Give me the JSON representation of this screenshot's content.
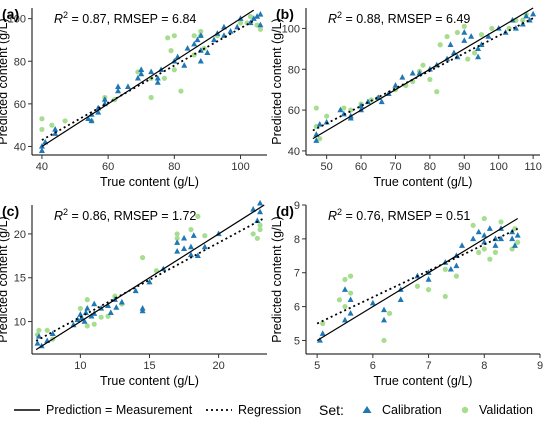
{
  "colors": {
    "calibration": "#1f78b4",
    "validation": "#a6dd8f",
    "identity": "#000000",
    "regression": "#000000"
  },
  "legend": {
    "line_label": "Prediction = Measurement",
    "regression_label": "Regression",
    "set_title": "Set:",
    "calibration_label": "Calibration",
    "validation_label": "Validation"
  },
  "chart_data": [
    {
      "type": "scatter",
      "label": "(a)",
      "stats": {
        "r2": "= 0.87, RMSEP = 6.84"
      },
      "xlabel": "True content (g/L)",
      "ylabel": "Predicted content (g/L)",
      "xlim": [
        37,
        108
      ],
      "ylim": [
        36,
        105
      ],
      "xticks": [
        40,
        60,
        80,
        100
      ],
      "yticks": [
        40,
        60,
        80,
        100
      ],
      "identity": [
        [
          40,
          40
        ],
        [
          104,
          104
        ]
      ],
      "regression": [
        [
          40,
          43
        ],
        [
          104,
          99
        ]
      ],
      "calibration": [
        [
          40,
          38
        ],
        [
          40,
          40
        ],
        [
          41,
          42
        ],
        [
          44,
          46
        ],
        [
          44,
          48
        ],
        [
          54,
          53
        ],
        [
          55,
          55
        ],
        [
          55,
          52
        ],
        [
          57,
          56
        ],
        [
          57,
          58
        ],
        [
          59,
          60
        ],
        [
          59,
          62
        ],
        [
          63,
          66
        ],
        [
          63,
          68
        ],
        [
          66,
          68
        ],
        [
          69,
          72
        ],
        [
          70,
          76
        ],
        [
          70,
          74
        ],
        [
          73,
          75
        ],
        [
          75,
          70
        ],
        [
          75,
          72
        ],
        [
          76,
          76
        ],
        [
          80,
          80
        ],
        [
          81,
          82
        ],
        [
          83,
          78
        ],
        [
          84,
          86
        ],
        [
          86,
          88
        ],
        [
          87,
          90
        ],
        [
          88,
          85
        ],
        [
          88,
          92
        ],
        [
          88,
          80
        ],
        [
          90,
          84
        ],
        [
          92,
          90
        ],
        [
          93,
          93
        ],
        [
          95,
          96
        ],
        [
          95,
          92
        ],
        [
          97,
          94
        ],
        [
          99,
          96
        ],
        [
          100,
          100
        ],
        [
          103,
          98
        ],
        [
          104,
          100
        ],
        [
          105,
          101
        ],
        [
          106,
          102
        ],
        [
          106,
          97
        ]
      ],
      "validation": [
        [
          40,
          48
        ],
        [
          40,
          53
        ],
        [
          43,
          50
        ],
        [
          47,
          52
        ],
        [
          55,
          52
        ],
        [
          59,
          63
        ],
        [
          62,
          62
        ],
        [
          69,
          75
        ],
        [
          73,
          63
        ],
        [
          73,
          72
        ],
        [
          77,
          72
        ],
        [
          78,
          91
        ],
        [
          79,
          85
        ],
        [
          80,
          76
        ],
        [
          80,
          92
        ],
        [
          82,
          66
        ],
        [
          86,
          92
        ],
        [
          86,
          83
        ],
        [
          88,
          92
        ],
        [
          88,
          94
        ],
        [
          89,
          86
        ],
        [
          93,
          92
        ],
        [
          100,
          98
        ],
        [
          102,
          98
        ],
        [
          103,
          101
        ],
        [
          105,
          97
        ],
        [
          106,
          95
        ]
      ]
    },
    {
      "type": "scatter",
      "label": "(b)",
      "stats": {
        "r2": "= 0.88, RMSEP = 6.49"
      },
      "xlabel": "True content (g/L)",
      "ylabel": "Predicted content (g/L)",
      "xlim": [
        44,
        112
      ],
      "ylim": [
        38,
        110
      ],
      "xticks": [
        50,
        60,
        70,
        80,
        90,
        100,
        110
      ],
      "yticks": [
        40,
        60,
        80,
        100
      ],
      "identity": [
        [
          46,
          46
        ],
        [
          110,
          110
        ]
      ],
      "regression": [
        [
          46,
          50
        ],
        [
          110,
          105
        ]
      ],
      "calibration": [
        [
          47,
          45
        ],
        [
          47,
          48
        ],
        [
          48,
          53
        ],
        [
          50,
          54
        ],
        [
          54,
          60
        ],
        [
          55,
          58
        ],
        [
          57,
          56
        ],
        [
          57,
          57
        ],
        [
          60,
          60
        ],
        [
          60,
          62
        ],
        [
          62,
          64
        ],
        [
          65,
          66
        ],
        [
          66,
          64
        ],
        [
          68,
          68
        ],
        [
          70,
          72
        ],
        [
          72,
          76
        ],
        [
          75,
          78
        ],
        [
          77,
          78
        ],
        [
          80,
          80
        ],
        [
          82,
          82
        ],
        [
          85,
          85
        ],
        [
          86,
          92
        ],
        [
          87,
          88
        ],
        [
          88,
          86
        ],
        [
          90,
          94
        ],
        [
          90,
          98
        ],
        [
          92,
          96
        ],
        [
          94,
          90
        ],
        [
          94,
          86
        ],
        [
          95,
          92
        ],
        [
          97,
          96
        ],
        [
          100,
          100
        ],
        [
          102,
          98
        ],
        [
          104,
          104
        ],
        [
          105,
          100
        ],
        [
          107,
          102
        ],
        [
          108,
          106
        ],
        [
          109,
          104
        ],
        [
          110,
          107
        ]
      ],
      "validation": [
        [
          47,
          52
        ],
        [
          47,
          61
        ],
        [
          48,
          46
        ],
        [
          50,
          57
        ],
        [
          55,
          61
        ],
        [
          57,
          60
        ],
        [
          60,
          63
        ],
        [
          63,
          65
        ],
        [
          65,
          66
        ],
        [
          70,
          70
        ],
        [
          73,
          72
        ],
        [
          75,
          74
        ],
        [
          77,
          79
        ],
        [
          78,
          82
        ],
        [
          80,
          75
        ],
        [
          82,
          69
        ],
        [
          83,
          92
        ],
        [
          85,
          96
        ],
        [
          88,
          98
        ],
        [
          90,
          101
        ],
        [
          91,
          85
        ],
        [
          93,
          88
        ],
        [
          95,
          97
        ],
        [
          98,
          100
        ],
        [
          103,
          100
        ],
        [
          105,
          104
        ],
        [
          107,
          104
        ],
        [
          108,
          107
        ]
      ]
    },
    {
      "type": "scatter",
      "label": "(c)",
      "stats": {
        "r2": "= 0.86, RMSEP = 1.72"
      },
      "xlabel": "True content (g/L)",
      "ylabel": "Predicted content (g/L)",
      "xlim": [
        6.5,
        23.5
      ],
      "ylim": [
        6.3,
        23.3
      ],
      "xticks": [
        10,
        15,
        20
      ],
      "yticks": [
        10,
        15,
        20
      ],
      "identity": [
        [
          6.8,
          6.8
        ],
        [
          23.3,
          23.3
        ]
      ],
      "regression": [
        [
          6.8,
          7.8
        ],
        [
          23.3,
          21.8
        ]
      ],
      "calibration": [
        [
          6.9,
          7.5
        ],
        [
          7.0,
          8.3
        ],
        [
          7.2,
          7.2
        ],
        [
          7.6,
          7.8
        ],
        [
          8.0,
          8.6
        ],
        [
          9.5,
          9.6
        ],
        [
          9.8,
          10.2
        ],
        [
          10.0,
          10.8
        ],
        [
          10.1,
          10.4
        ],
        [
          10.3,
          10.0
        ],
        [
          10.4,
          11.0
        ],
        [
          10.5,
          11.5
        ],
        [
          10.8,
          10.6
        ],
        [
          11.0,
          12.0
        ],
        [
          11.0,
          10.9
        ],
        [
          11.5,
          11.5
        ],
        [
          12.0,
          11.8
        ],
        [
          12.2,
          11.0
        ],
        [
          12.5,
          12.5
        ],
        [
          12.6,
          11.6
        ],
        [
          13.0,
          12.2
        ],
        [
          14.0,
          13.5
        ],
        [
          14.5,
          11.5
        ],
        [
          14.5,
          11.2
        ],
        [
          15.0,
          14.5
        ],
        [
          16.0,
          16.0
        ],
        [
          17.0,
          18.0
        ],
        [
          17.0,
          19.0
        ],
        [
          17.5,
          19.5
        ],
        [
          17.5,
          18.3
        ],
        [
          18.0,
          18.5
        ],
        [
          18.0,
          17.6
        ],
        [
          18.2,
          19.8
        ],
        [
          18.5,
          17.5
        ],
        [
          19.0,
          18.5
        ],
        [
          20.0,
          20.0
        ],
        [
          22.5,
          22.8
        ],
        [
          23.0,
          22.5
        ],
        [
          23.0,
          23.5
        ],
        [
          22.8,
          21.5
        ]
      ],
      "validation": [
        [
          6.9,
          8.5
        ],
        [
          7.0,
          9.0
        ],
        [
          7.6,
          9.0
        ],
        [
          8.0,
          8.0
        ],
        [
          10.0,
          11.5
        ],
        [
          10.5,
          12.5
        ],
        [
          10.5,
          9.5
        ],
        [
          11.0,
          9.7
        ],
        [
          11.5,
          10.5
        ],
        [
          12.0,
          10.6
        ],
        [
          12.5,
          12.9
        ],
        [
          13.0,
          12.0
        ],
        [
          14.5,
          17.3
        ],
        [
          15.5,
          15.8
        ],
        [
          17.0,
          20.0
        ],
        [
          17.0,
          19.5
        ],
        [
          18.0,
          20.5
        ],
        [
          18.5,
          22.0
        ],
        [
          19.0,
          19.8
        ],
        [
          22.5,
          20.0
        ],
        [
          22.8,
          19.5
        ],
        [
          23.0,
          20.5
        ],
        [
          23.0,
          21.0
        ]
      ]
    },
    {
      "type": "scatter",
      "label": "(d)",
      "stats": {
        "r2": "= 0.76, RMSEP = 0.51"
      },
      "xlabel": "True content (g/L)",
      "ylabel": "Predicted content (g/L)",
      "xlim": [
        4.8,
        9.0
      ],
      "ylim": [
        4.6,
        9.0
      ],
      "xticks": [
        5,
        6,
        7,
        8,
        9
      ],
      "yticks": [
        5,
        6,
        7,
        8,
        9
      ],
      "identity": [
        [
          5.0,
          5.0
        ],
        [
          8.6,
          8.6
        ]
      ],
      "regression": [
        [
          5.0,
          5.5
        ],
        [
          8.6,
          8.3
        ]
      ],
      "calibration": [
        [
          5.05,
          5.0
        ],
        [
          5.1,
          5.2
        ],
        [
          5.5,
          5.6
        ],
        [
          5.5,
          6.5
        ],
        [
          5.6,
          6.2
        ],
        [
          5.6,
          5.8
        ],
        [
          6.0,
          6.1
        ],
        [
          6.2,
          5.9
        ],
        [
          6.2,
          5.6
        ],
        [
          6.5,
          6.5
        ],
        [
          6.5,
          6.2
        ],
        [
          6.8,
          6.9
        ],
        [
          7.0,
          7.0
        ],
        [
          7.0,
          6.8
        ],
        [
          7.3,
          7.3
        ],
        [
          7.4,
          7.1
        ],
        [
          7.5,
          7.5
        ],
        [
          7.5,
          7.2
        ],
        [
          7.6,
          7.8
        ],
        [
          7.8,
          8.0
        ],
        [
          7.9,
          8.2
        ],
        [
          8.0,
          7.9
        ],
        [
          8.0,
          8.1
        ],
        [
          8.1,
          8.3
        ],
        [
          8.2,
          8.0
        ],
        [
          8.2,
          7.8
        ],
        [
          8.3,
          8.0
        ],
        [
          8.3,
          8.3
        ],
        [
          8.5,
          8.2
        ],
        [
          8.5,
          8.0
        ],
        [
          8.55,
          7.8
        ],
        [
          8.6,
          8.1
        ]
      ],
      "validation": [
        [
          5.1,
          5.5
        ],
        [
          5.4,
          6.2
        ],
        [
          5.5,
          6.8
        ],
        [
          5.5,
          6.0
        ],
        [
          5.6,
          6.4
        ],
        [
          5.6,
          6.9
        ],
        [
          6.2,
          5.0
        ],
        [
          6.3,
          5.8
        ],
        [
          6.8,
          6.6
        ],
        [
          7.0,
          6.5
        ],
        [
          7.3,
          6.3
        ],
        [
          7.3,
          7.1
        ],
        [
          7.5,
          6.9
        ],
        [
          7.8,
          8.4
        ],
        [
          7.9,
          7.6
        ],
        [
          8.0,
          8.6
        ],
        [
          8.0,
          7.7
        ],
        [
          8.1,
          7.4
        ],
        [
          8.2,
          7.6
        ],
        [
          8.3,
          8.5
        ],
        [
          8.5,
          7.7
        ],
        [
          8.55,
          8.3
        ],
        [
          8.6,
          7.9
        ]
      ]
    }
  ]
}
